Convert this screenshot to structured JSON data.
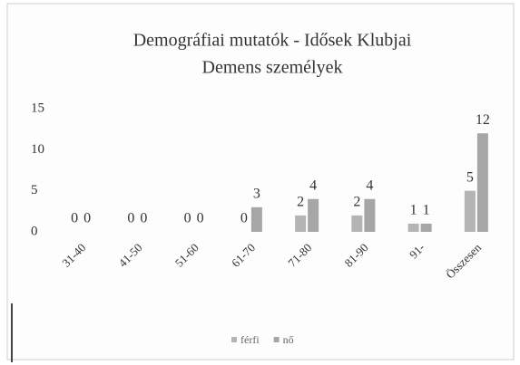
{
  "chart_data": {
    "type": "bar",
    "title": "Demográfiai mutatók - Idősek Klubjai",
    "subtitle": "Demens személyek",
    "categories": [
      "31-40",
      "41-50",
      "51-60",
      "61-70",
      "71-80",
      "81-90",
      "91-",
      "Összesen"
    ],
    "series": [
      {
        "name": "férfi",
        "color": "#b4b4b4",
        "values": [
          0,
          0,
          0,
          0,
          2,
          2,
          1,
          5
        ]
      },
      {
        "name": "nő",
        "color": "#a6a6a6",
        "values": [
          0,
          0,
          0,
          3,
          4,
          4,
          1,
          12
        ]
      }
    ],
    "ylim": [
      0,
      15
    ],
    "yticks": [
      0,
      5,
      10,
      15
    ],
    "grid": false,
    "legend": "bottom"
  }
}
